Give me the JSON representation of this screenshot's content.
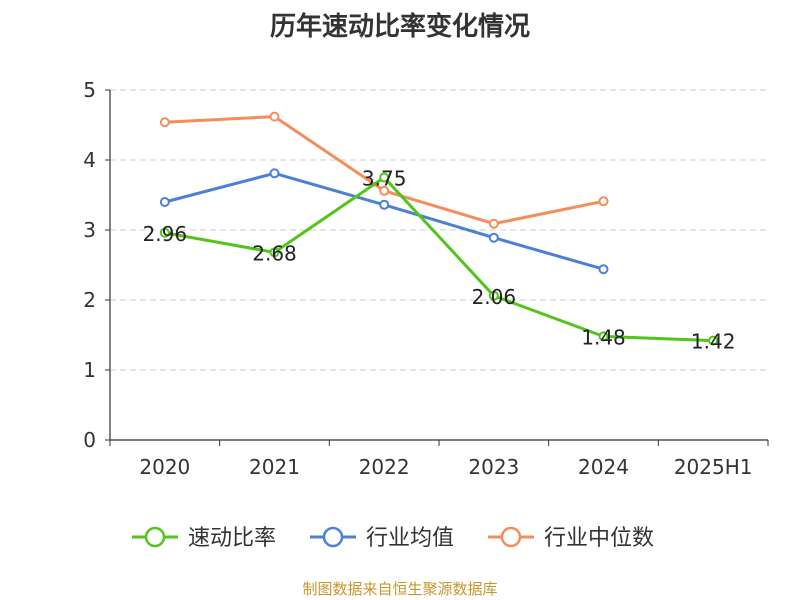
{
  "chart_data": {
    "type": "line",
    "title": "历年速动比率变化情况",
    "categories": [
      "2020",
      "2021",
      "2022",
      "2023",
      "2024",
      "2025H1"
    ],
    "ylim": [
      0,
      5
    ],
    "yticks": [
      0,
      1,
      2,
      3,
      4,
      5
    ],
    "grid": true,
    "legend_position": "bottom",
    "series": [
      {
        "name": "速动比率",
        "color": "#52c41a",
        "values": [
          2.96,
          2.68,
          3.75,
          2.06,
          1.48,
          1.42
        ],
        "labels": [
          "2.96",
          "2.68",
          "3.75",
          "2.06",
          "1.48",
          "1.42"
        ]
      },
      {
        "name": "行业均值",
        "color": "#4e7fd8",
        "values": [
          3.4,
          3.81,
          3.36,
          2.89,
          2.44,
          null
        ]
      },
      {
        "name": "行业中位数",
        "color": "#f48d5b",
        "values": [
          4.54,
          4.62,
          3.56,
          3.09,
          3.41,
          null
        ]
      }
    ]
  },
  "source": {
    "text": "制图数据来自恒生聚源数据库",
    "color": "#c8962e"
  }
}
